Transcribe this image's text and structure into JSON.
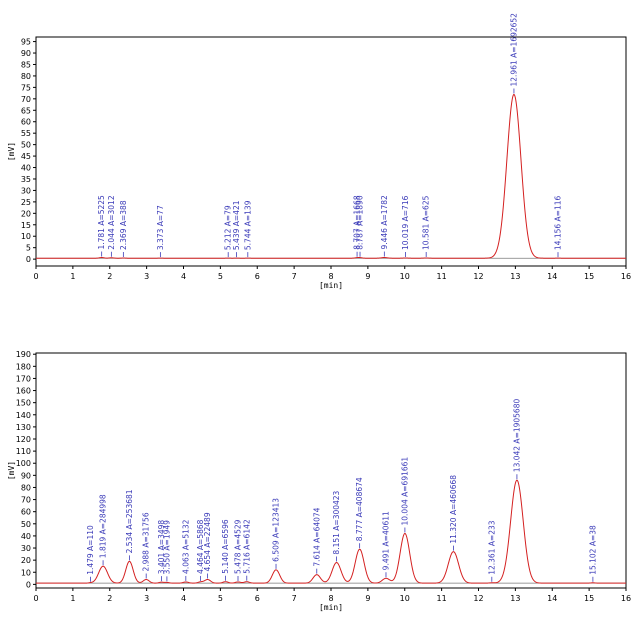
{
  "chart_data": [
    {
      "type": "line",
      "title": "",
      "xlabel": "[min]",
      "ylabel": "[mV]",
      "xlim": [
        0,
        16
      ],
      "ylim": [
        -3,
        97
      ],
      "x_ticks": [
        0,
        1,
        2,
        3,
        4,
        5,
        6,
        7,
        8,
        9,
        10,
        11,
        12,
        13,
        14,
        15,
        16
      ],
      "y_ticks": [
        0,
        5,
        10,
        15,
        20,
        25,
        30,
        35,
        40,
        45,
        50,
        55,
        60,
        65,
        70,
        75,
        80,
        85,
        90,
        95
      ],
      "grid": false,
      "colors": {
        "trace": "#d42020",
        "baseline": "#7a7a7a",
        "label": "#3a3ab8",
        "frame": "#000000"
      },
      "baseline_level": 0.4,
      "peaks": [
        {
          "t": 1.781,
          "label": "1.781 A=5225",
          "height": 0.3,
          "width": 0.06
        },
        {
          "t": 2.044,
          "label": "2.044 A=3012",
          "height": 0.2,
          "width": 0.06
        },
        {
          "t": 2.369,
          "label": "2.369 A=388",
          "height": 0.1,
          "width": 0.05
        },
        {
          "t": 3.373,
          "label": "3.373 A=77",
          "height": 0.05,
          "width": 0.05
        },
        {
          "t": 5.212,
          "label": "5.212 A=79",
          "height": 0.05,
          "width": 0.05
        },
        {
          "t": 5.439,
          "label": "5.439 A=421",
          "height": 0.05,
          "width": 0.05
        },
        {
          "t": 5.744,
          "label": "5.744 A=139",
          "height": 0.05,
          "width": 0.05
        },
        {
          "t": 8.707,
          "label": "8.707 A=1668",
          "height": 0.2,
          "width": 0.06
        },
        {
          "t": 8.787,
          "label": "8.787 A=1890",
          "height": 0.2,
          "width": 0.06
        },
        {
          "t": 9.446,
          "label": "9.446 A=1782",
          "height": 0.3,
          "width": 0.08
        },
        {
          "t": 10.019,
          "label": "10.019 A=716",
          "height": 0.1,
          "width": 0.07
        },
        {
          "t": 10.581,
          "label": "10.581 A=625",
          "height": 0.1,
          "width": 0.07
        },
        {
          "t": 12.961,
          "label": "12.961 A=1692652",
          "height": 71.5,
          "width": 0.19
        },
        {
          "t": 14.156,
          "label": "14.156 A=116",
          "height": 0.05,
          "width": 0.05
        }
      ]
    },
    {
      "type": "line",
      "title": "",
      "xlabel": "[min]",
      "ylabel": "[mV]",
      "xlim": [
        0,
        16
      ],
      "ylim": [
        -3,
        191
      ],
      "x_ticks": [
        0,
        1,
        2,
        3,
        4,
        5,
        6,
        7,
        8,
        9,
        10,
        11,
        12,
        13,
        14,
        15,
        16
      ],
      "y_ticks": [
        0,
        10,
        20,
        30,
        40,
        50,
        60,
        70,
        80,
        90,
        100,
        110,
        120,
        130,
        140,
        150,
        160,
        170,
        180,
        190
      ],
      "grid": false,
      "colors": {
        "trace": "#d42020",
        "baseline": "#7a7a7a",
        "label": "#3a3ab8",
        "frame": "#000000"
      },
      "baseline_level": 1.0,
      "peaks": [
        {
          "t": 1.479,
          "label": "1.479 A=110",
          "height": 0.3,
          "width": 0.05
        },
        {
          "t": 1.819,
          "label": "1.819 A=284998",
          "height": 14,
          "width": 0.12
        },
        {
          "t": 2.534,
          "label": "2.534 A=253681",
          "height": 18,
          "width": 0.1
        },
        {
          "t": 2.988,
          "label": "2.988 A=31756",
          "height": 3,
          "width": 0.08
        },
        {
          "t": 3.401,
          "label": "3.401 A=3498",
          "height": 0.8,
          "width": 0.06
        },
        {
          "t": 3.55,
          "label": "3.550 A=1949",
          "height": 0.6,
          "width": 0.06
        },
        {
          "t": 4.063,
          "label": "4.063 A=5132",
          "height": 1,
          "width": 0.07
        },
        {
          "t": 4.464,
          "label": "4.464 A=5868",
          "height": 1,
          "width": 0.07
        },
        {
          "t": 4.654,
          "label": "4.654 A=22489",
          "height": 3,
          "width": 0.08
        },
        {
          "t": 5.14,
          "label": "5.140 A=6596",
          "height": 1.2,
          "width": 0.07
        },
        {
          "t": 5.478,
          "label": "5.478 A=4529",
          "height": 1,
          "width": 0.07
        },
        {
          "t": 5.716,
          "label": "5.716 A=6142",
          "height": 1.2,
          "width": 0.07
        },
        {
          "t": 6.509,
          "label": "6.509 A=123413",
          "height": 11,
          "width": 0.1
        },
        {
          "t": 7.614,
          "label": "7.614 A=64074",
          "height": 7,
          "width": 0.1
        },
        {
          "t": 8.151,
          "label": "8.151 A=300423",
          "height": 17,
          "width": 0.12
        },
        {
          "t": 8.777,
          "label": "8.777 A=408674",
          "height": 28,
          "width": 0.12
        },
        {
          "t": 9.491,
          "label": "9.491 A=40611",
          "height": 4,
          "width": 0.1
        },
        {
          "t": 10.004,
          "label": "10.004 A=691661",
          "height": 41,
          "width": 0.13
        },
        {
          "t": 11.32,
          "label": "11.320 A=460668",
          "height": 26,
          "width": 0.14
        },
        {
          "t": 12.361,
          "label": "12.361 A=233",
          "height": 0.3,
          "width": 0.06
        },
        {
          "t": 13.042,
          "label": "13.042 A=1905680",
          "height": 85,
          "width": 0.17
        },
        {
          "t": 15.102,
          "label": "15.102 A=38",
          "height": 0.3,
          "width": 0.06
        }
      ]
    }
  ]
}
